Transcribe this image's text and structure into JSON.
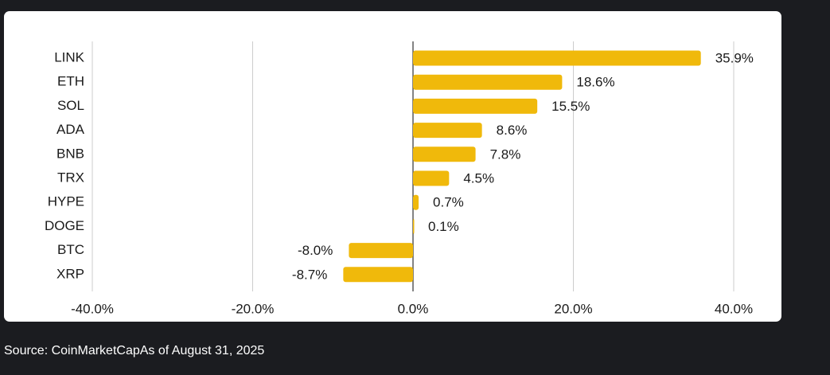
{
  "chart_data": {
    "type": "bar",
    "orientation": "horizontal",
    "categories": [
      "LINK",
      "ETH",
      "SOL",
      "ADA",
      "BNB",
      "TRX",
      "HYPE",
      "DOGE",
      "BTC",
      "XRP"
    ],
    "values": [
      35.9,
      18.6,
      15.5,
      8.6,
      7.8,
      4.5,
      0.7,
      0.1,
      -8.0,
      -8.7
    ],
    "value_labels": [
      "35.9%",
      "18.6%",
      "15.5%",
      "8.6%",
      "7.8%",
      "4.5%",
      "0.7%",
      "0.1%",
      "-8.0%",
      "-8.7%"
    ],
    "xlim": [
      -40,
      40
    ],
    "x_ticks": [
      -40,
      -20,
      0,
      20,
      40
    ],
    "x_tick_labels": [
      "-40.0%",
      "-20.0%",
      "0.0%",
      "20.0%",
      "40.0%"
    ],
    "title": "",
    "xlabel": "",
    "ylabel": "",
    "grid": "vertical",
    "legend": "none",
    "bar_color": "#f0b90b"
  },
  "footer": {
    "source": "Source: CoinMarketCapAs of August 31, 2025"
  }
}
